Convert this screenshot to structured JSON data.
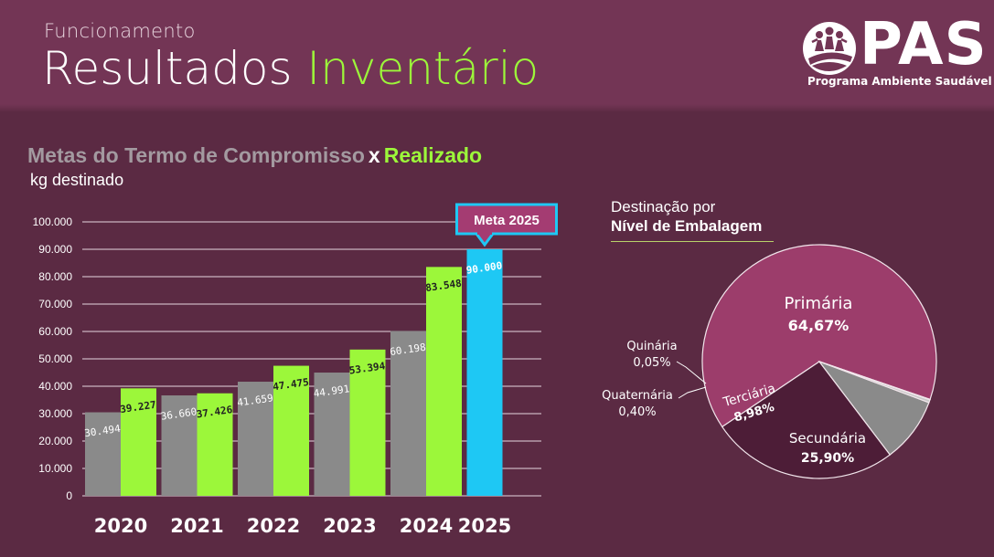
{
  "header": {
    "subtitle": "Funcionamento",
    "title_main": "Resultados",
    "title_accent": "Inventário"
  },
  "logo": {
    "text": "PAS",
    "subtitle": "Programa Ambiente Saudável"
  },
  "bar_chart": {
    "title_part1": "Metas do Termo de Compromisso",
    "title_x": "x",
    "title_part2": "Realizado",
    "unit": "kg destinado",
    "callout": "Meta 2025"
  },
  "pie_chart": {
    "title_line1": "Destinação por",
    "title_line2": "Nível de Embalagem"
  },
  "colors": {
    "background": "#5b2a43",
    "header": "#733555",
    "meta": "#8a8a8a",
    "realizado": "#9cf73a",
    "meta_2025": "#1ec8f4",
    "primaria": "#9c3d6b",
    "secundaria": "#4d1d37",
    "terciaria": "#8a8a8a",
    "callout": "#a43c72"
  },
  "chart_data": [
    {
      "type": "bar",
      "title": "Metas do Termo de Compromisso x Realizado",
      "ylabel": "kg destinado",
      "categories": [
        "2020",
        "2021",
        "2022",
        "2023",
        "2024",
        "2025"
      ],
      "series": [
        {
          "key": "meta",
          "values": [
            30494,
            36660,
            41659,
            44991,
            60198,
            null
          ],
          "labels": [
            "30.494",
            "36.660",
            "41.659",
            "44.991",
            "60.198",
            ""
          ]
        },
        {
          "key": "realizado",
          "values": [
            39227,
            37426,
            47475,
            53394,
            83548,
            90000
          ],
          "labels": [
            "39.227",
            "37.426",
            "47.475",
            "53.394",
            "83.548",
            "90.000"
          ]
        }
      ],
      "yticks": [
        0,
        10000,
        20000,
        30000,
        40000,
        50000,
        60000,
        70000,
        80000,
        90000,
        100000
      ],
      "ytick_labels": [
        "0",
        "10.000",
        "20.000",
        "30.000",
        "40.000",
        "50.000",
        "60.000",
        "70.000",
        "80.000",
        "90.000",
        "100.000"
      ],
      "ylim": [
        0,
        100000
      ],
      "grid": true
    },
    {
      "type": "pie",
      "title": "Destinação por Nível de Embalagem",
      "slices": [
        {
          "name": "Primária",
          "value": 64.67,
          "label": "64,67%"
        },
        {
          "name": "Secundária",
          "value": 25.9,
          "label": "25,90%"
        },
        {
          "name": "Terciária",
          "value": 8.98,
          "label": "8,98%"
        },
        {
          "name": "Quaternária",
          "value": 0.4,
          "label": "0,40%"
        },
        {
          "name": "Quinária",
          "value": 0.05,
          "label": "0,05%"
        }
      ]
    }
  ]
}
